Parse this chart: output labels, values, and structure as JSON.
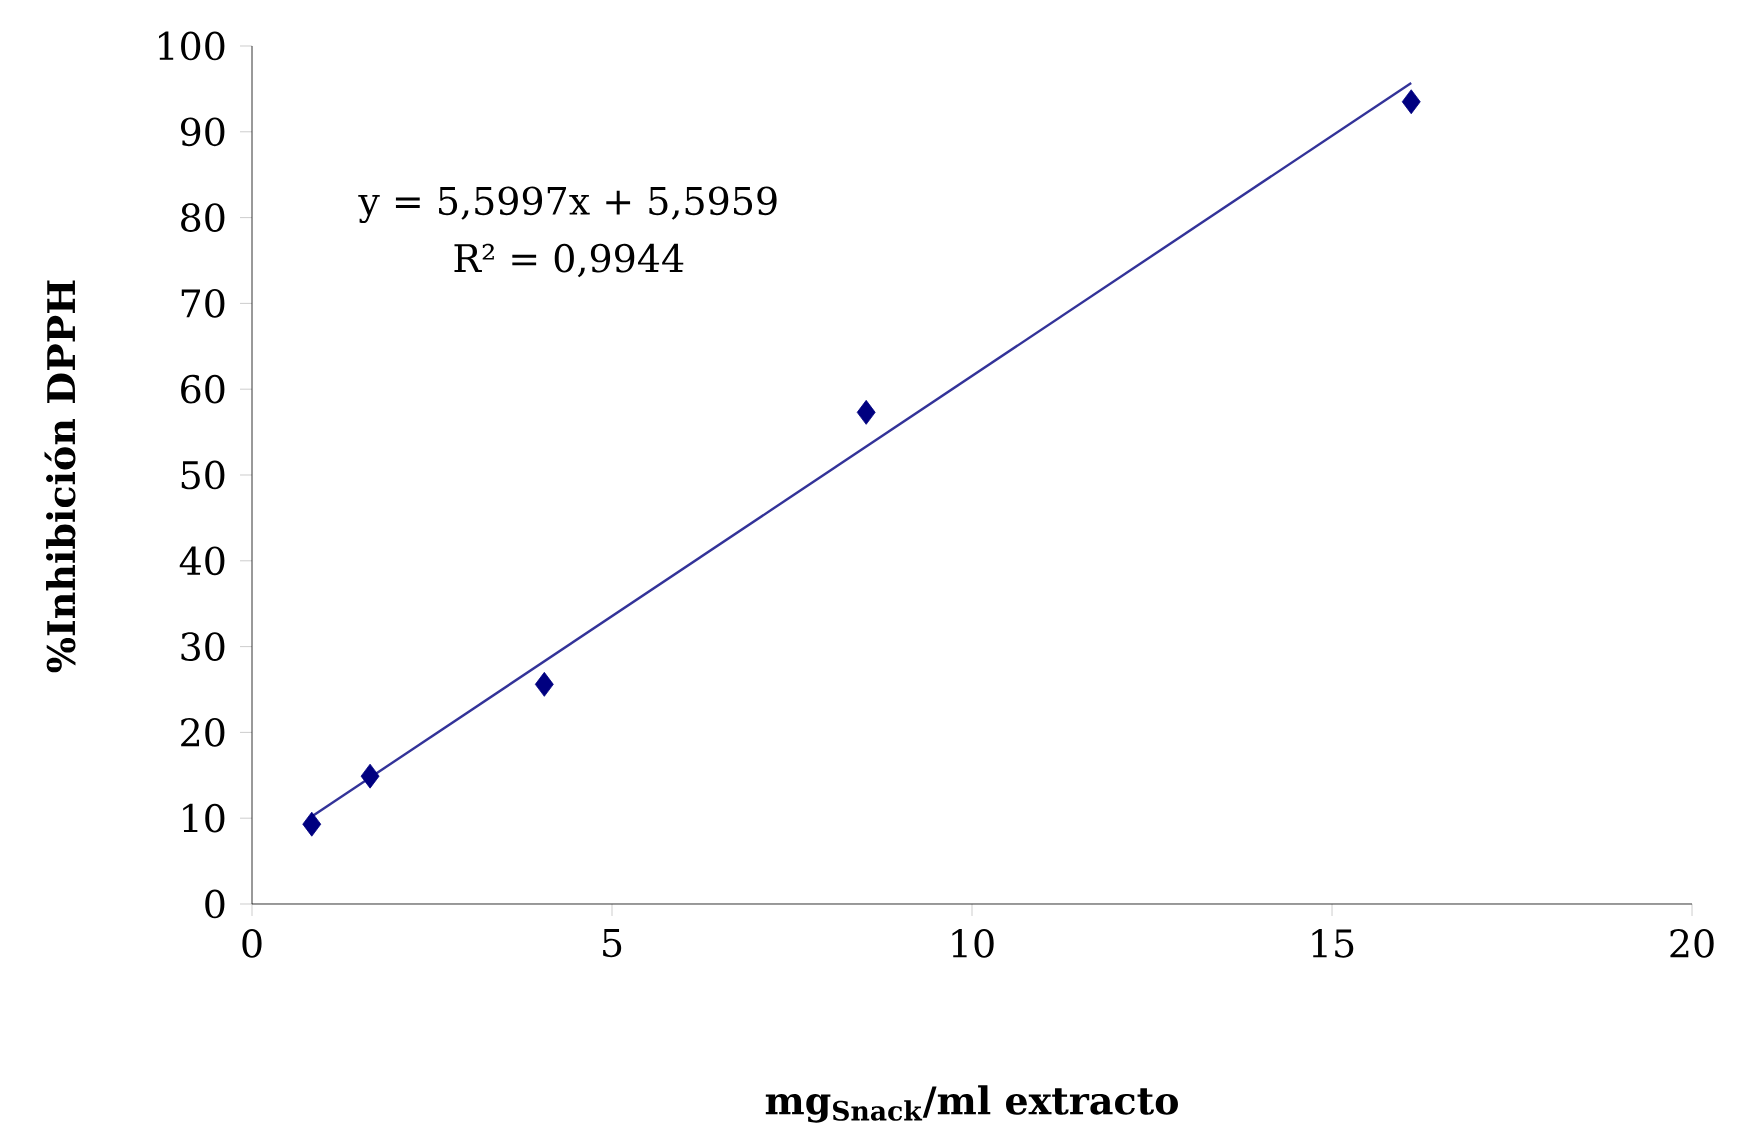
{
  "chart_data": {
    "type": "scatter",
    "xlabel": "mg$_{Snack}$/ml extracto",
    "ylabel": "%Inhibición DPPH",
    "annotations": [
      "y = 5,5997x + 5,5959",
      "R² = 0,9944"
    ],
    "series": [
      {
        "color": "#000080",
        "marker": "diamond",
        "x": [
          0.83,
          1.64,
          4.06,
          8.53,
          16.1
        ],
        "values": [
          9.3,
          14.9,
          25.6,
          57.3,
          93.5
        ]
      },
      {
        "type": "line",
        "color": "#333399",
        "marker": "none",
        "line_style": "solid",
        "x": [
          0.83,
          16.1
        ],
        "values": [
          10.2,
          95.7
        ]
      }
    ],
    "xlim": [
      0,
      20
    ],
    "ylim": [
      0,
      100
    ],
    "xticks": [
      0,
      5,
      10,
      15,
      20
    ],
    "yticks": [
      0,
      10,
      20,
      30,
      40,
      50,
      60,
      70,
      80,
      90,
      100
    ]
  }
}
